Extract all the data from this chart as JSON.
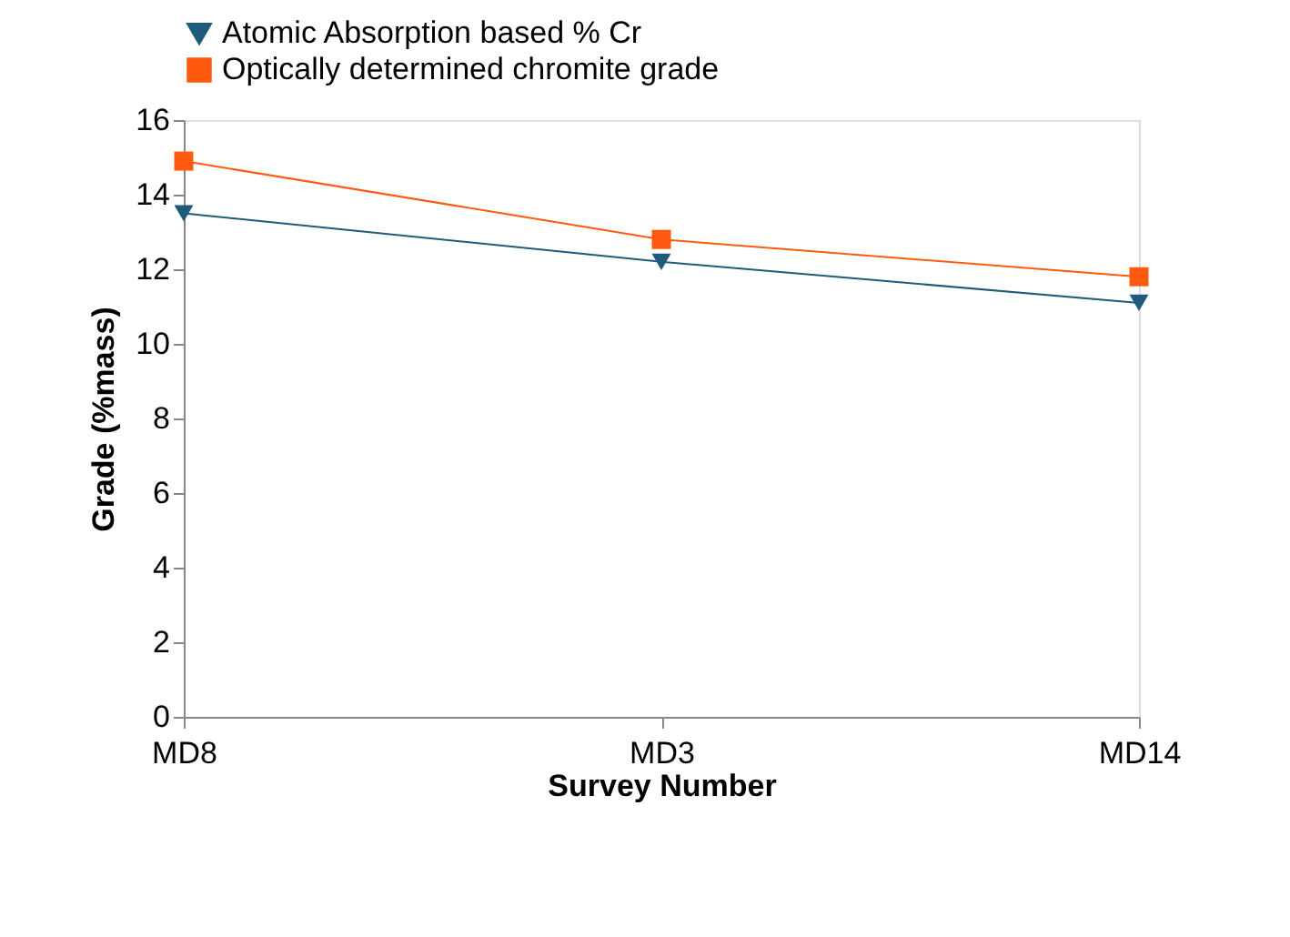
{
  "chart_data": {
    "type": "line",
    "xlabel": "Survey Number",
    "ylabel": "Grade (%mass)",
    "categories": [
      "MD8",
      "MD3",
      "MD14"
    ],
    "series": [
      {
        "name": "Atomic Absorption based % Cr",
        "color": "#1f5b7a",
        "marker": "triangle",
        "values": [
          13.5,
          12.2,
          11.1
        ]
      },
      {
        "name": "Optically determined chromite grade",
        "color": "#ff5a0f",
        "marker": "square",
        "values": [
          14.9,
          12.8,
          11.8
        ]
      }
    ],
    "ylim": [
      0,
      16
    ],
    "yticks": [
      0,
      2,
      4,
      6,
      8,
      10,
      12,
      14,
      16
    ],
    "grid": false,
    "legend": "top",
    "line_style": "solid"
  }
}
